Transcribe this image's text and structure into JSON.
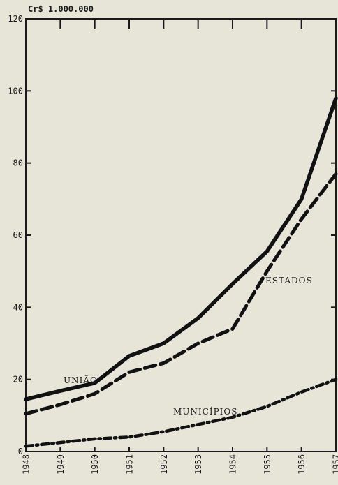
{
  "chart_data": {
    "type": "line",
    "unit_label": "Cr$ 1.000.000",
    "x": [
      1948,
      1949,
      1950,
      1951,
      1952,
      1953,
      1954,
      1955,
      1956,
      1957
    ],
    "x_tick_labels": [
      "1948",
      "1949",
      "1950",
      "1951",
      "1952",
      "1953",
      "1954",
      "1955",
      "1956",
      "1957"
    ],
    "y_ticks": [
      0,
      20,
      40,
      60,
      80,
      100,
      120
    ],
    "y_tick_labels": [
      "0",
      "20",
      "40",
      "60",
      "80",
      "100",
      "120"
    ],
    "xlim": [
      1948,
      1957
    ],
    "ylim": [
      0,
      120
    ],
    "grid": false,
    "series": [
      {
        "name": "UNIÃO",
        "style": "solid",
        "color": "#111111",
        "values": [
          14.5,
          16.8,
          19,
          26.5,
          30,
          37,
          46.5,
          55.5,
          70,
          98
        ]
      },
      {
        "name": "ESTADOS",
        "style": "dashed",
        "color": "#111111",
        "values": [
          10.5,
          13,
          16,
          22,
          24.5,
          30,
          34,
          50,
          64.5,
          77
        ]
      },
      {
        "name": "MUNICÍPIOS",
        "style": "dash-dot",
        "color": "#111111",
        "values": [
          1.5,
          2.5,
          3.5,
          4,
          5.5,
          7.5,
          9.5,
          12.5,
          16.5,
          20
        ]
      }
    ]
  }
}
